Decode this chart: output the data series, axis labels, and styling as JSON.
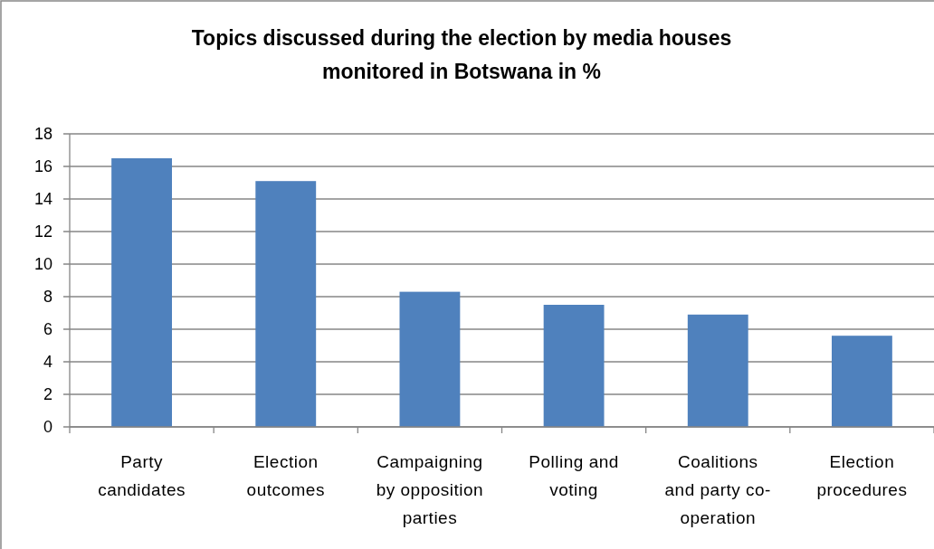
{
  "chart_data": {
    "type": "bar",
    "title": "Topics discussed during the election by media houses monitored in Botswana in %",
    "categories": [
      "Party candidates",
      "Election outcomes",
      "Campaigning by opposition parties",
      "Polling and voting",
      "Coalitions and party co-operation",
      "Election procedures"
    ],
    "values": [
      16.5,
      15.1,
      8.3,
      7.5,
      6.9,
      5.6
    ],
    "color": "#4f81bd",
    "ylim": [
      0,
      18
    ],
    "yticks": [
      0,
      2,
      4,
      6,
      8,
      10,
      12,
      14,
      16,
      18
    ],
    "grid": "y"
  }
}
